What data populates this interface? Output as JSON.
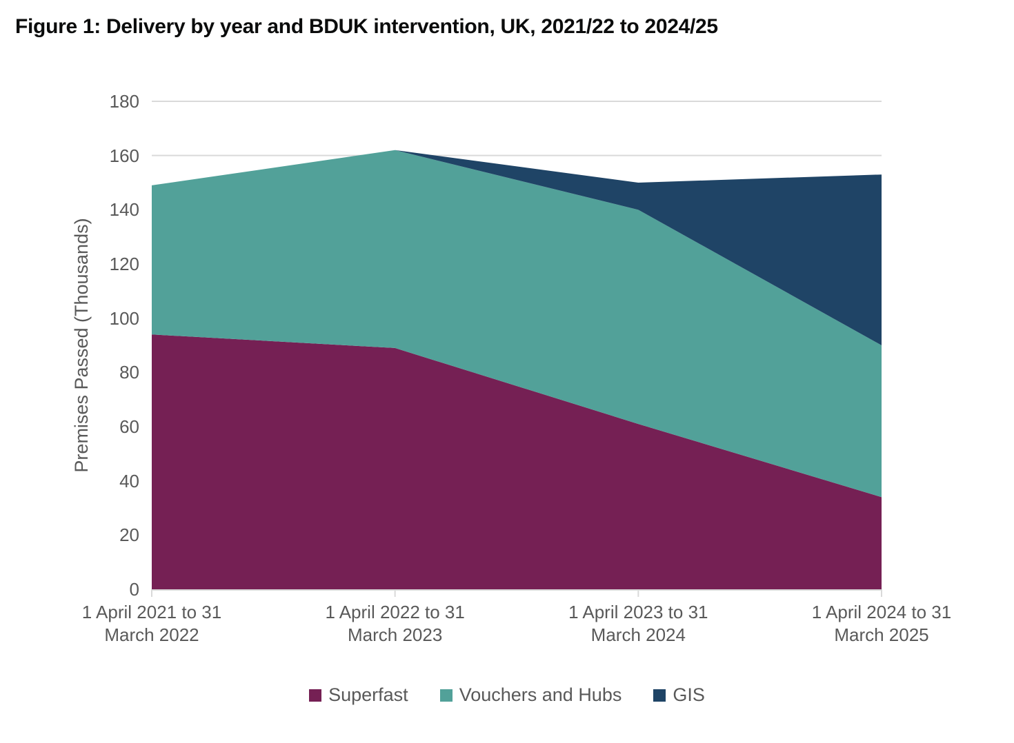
{
  "title": "Figure 1: Delivery by year and BDUK intervention, UK, 2021/22 to 2024/25",
  "chart_data": {
    "type": "area",
    "stacked": true,
    "title": "Figure 1: Delivery by year and BDUK intervention, UK, 2021/22 to 2024/25",
    "categories": [
      "1 April 2021 to 31 March 2022",
      "1 April 2022 to 31 March 2023",
      "1 April 2023 to 31 March 2024",
      "1 April 2024 to 31 March 2025"
    ],
    "series": [
      {
        "name": "Superfast",
        "color": "#752054",
        "values": [
          94,
          89,
          61,
          34
        ]
      },
      {
        "name": "Vouchers and Hubs",
        "color": "#52A199",
        "values": [
          55,
          73,
          79,
          56
        ]
      },
      {
        "name": "GIS",
        "color": "#1F4466",
        "values": [
          0,
          0,
          10,
          63
        ]
      }
    ],
    "stacked_totals": [
      149,
      162,
      150,
      153
    ],
    "xlabel": "",
    "ylabel": "Premises Passed (Thousands)",
    "ylim": [
      0,
      180
    ],
    "ytick_step": 20,
    "grid": true,
    "legend_position": "bottom",
    "colors": {
      "title_text": "#0b0c0c",
      "axis_text": "#595959",
      "gridline": "#d9d9d9",
      "axis_line": "#d9d9d9",
      "background": "#ffffff"
    }
  }
}
